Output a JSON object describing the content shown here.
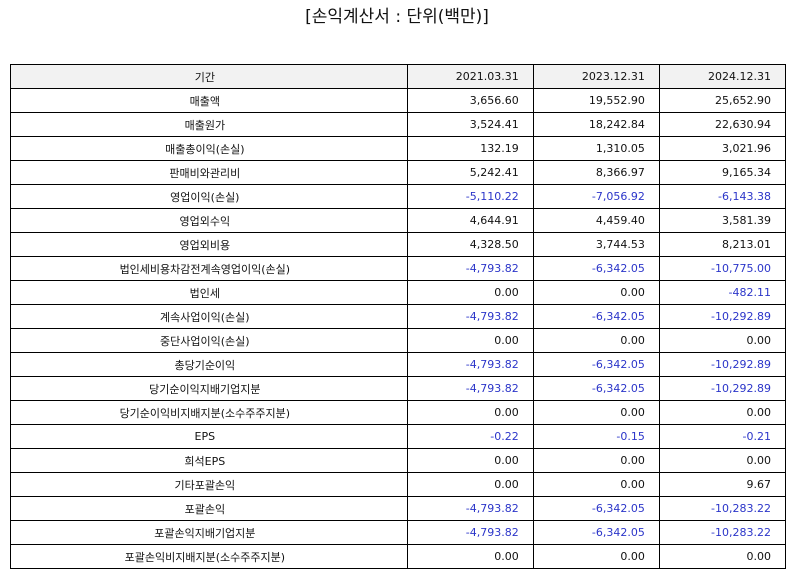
{
  "title": "[손익계산서 : 단위(백만)]",
  "colors": {
    "negative_value": "#2b35c9",
    "header_background": "#f2f2f2"
  },
  "table": {
    "header": {
      "label": "기간",
      "periods": [
        "2021.03.31",
        "2023.12.31",
        "2024.12.31"
      ]
    },
    "rows": [
      {
        "label": "매출액",
        "values": [
          "3,656.60",
          "19,552.90",
          "25,652.90"
        ]
      },
      {
        "label": "매출원가",
        "values": [
          "3,524.41",
          "18,242.84",
          "22,630.94"
        ]
      },
      {
        "label": "매출총이익(손실)",
        "values": [
          "132.19",
          "1,310.05",
          "3,021.96"
        ]
      },
      {
        "label": "판매비와관리비",
        "values": [
          "5,242.41",
          "8,366.97",
          "9,165.34"
        ]
      },
      {
        "label": "영업이익(손실)",
        "values": [
          "-5,110.22",
          "-7,056.92",
          "-6,143.38"
        ]
      },
      {
        "label": "영업외수익",
        "values": [
          "4,644.91",
          "4,459.40",
          "3,581.39"
        ]
      },
      {
        "label": "영업외비용",
        "values": [
          "4,328.50",
          "3,744.53",
          "8,213.01"
        ]
      },
      {
        "label": "법인세비용차감전계속영업이익(손실)",
        "values": [
          "-4,793.82",
          "-6,342.05",
          "-10,775.00"
        ]
      },
      {
        "label": "법인세",
        "values": [
          "0.00",
          "0.00",
          "-482.11"
        ]
      },
      {
        "label": "계속사업이익(손실)",
        "values": [
          "-4,793.82",
          "-6,342.05",
          "-10,292.89"
        ]
      },
      {
        "label": "중단사업이익(손실)",
        "values": [
          "0.00",
          "0.00",
          "0.00"
        ]
      },
      {
        "label": "총당기순이익",
        "values": [
          "-4,793.82",
          "-6,342.05",
          "-10,292.89"
        ]
      },
      {
        "label": "당기순이익지배기업지분",
        "values": [
          "-4,793.82",
          "-6,342.05",
          "-10,292.89"
        ]
      },
      {
        "label": "당기순이익비지배지분(소수주주지분)",
        "values": [
          "0.00",
          "0.00",
          "0.00"
        ]
      },
      {
        "label": "EPS",
        "values": [
          "-0.22",
          "-0.15",
          "-0.21"
        ]
      },
      {
        "label": "희석EPS",
        "values": [
          "0.00",
          "0.00",
          "0.00"
        ]
      },
      {
        "label": "기타포괄손익",
        "values": [
          "0.00",
          "0.00",
          "9.67"
        ]
      },
      {
        "label": "포괄손익",
        "values": [
          "-4,793.82",
          "-6,342.05",
          "-10,283.22"
        ]
      },
      {
        "label": "포괄손익지배기업지분",
        "values": [
          "-4,793.82",
          "-6,342.05",
          "-10,283.22"
        ]
      },
      {
        "label": "포괄손익비지배지분(소수주주지분)",
        "values": [
          "0.00",
          "0.00",
          "0.00"
        ]
      }
    ]
  }
}
